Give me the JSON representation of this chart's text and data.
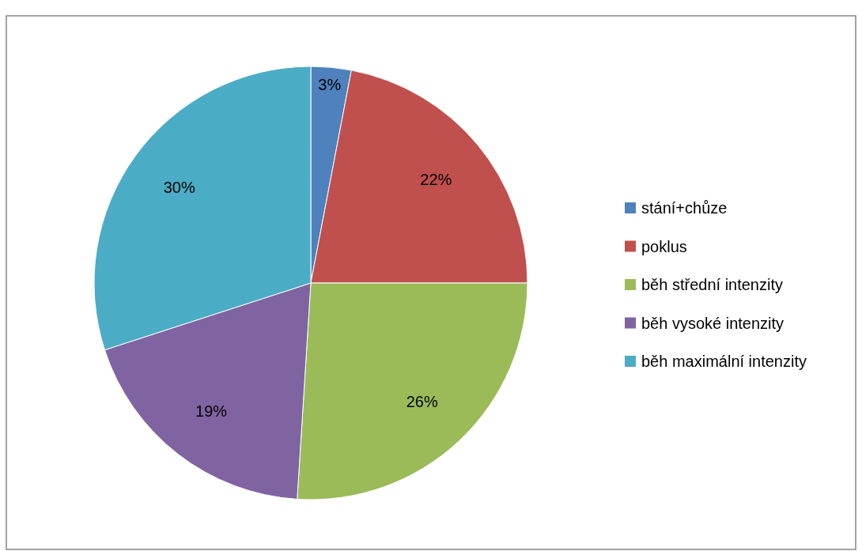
{
  "chart_data": {
    "type": "pie",
    "categories": [
      "stání+chůze",
      "poklus",
      "běh střední intenzity",
      "běh vysoké intenzity",
      "běh maximální intenzity"
    ],
    "values": [
      3,
      22,
      26,
      19,
      30
    ],
    "colors": [
      "#4f81bd",
      "#c0504d",
      "#9bbb59",
      "#8064a2",
      "#4bacc6"
    ],
    "value_labels": [
      "3%",
      "22%",
      "26%",
      "19%",
      "30%"
    ],
    "legend": "right"
  }
}
